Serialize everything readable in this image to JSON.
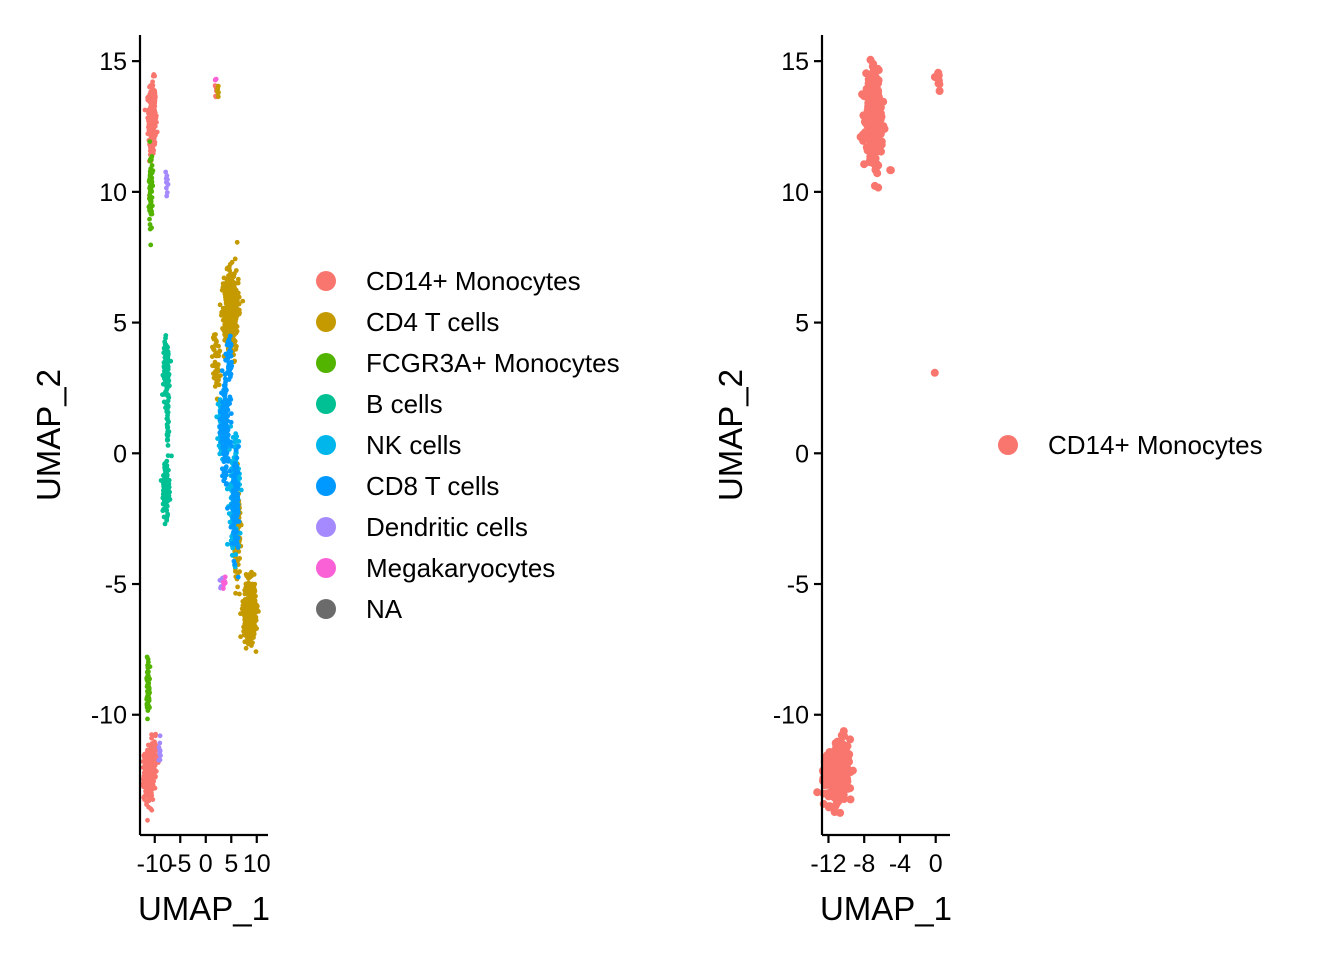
{
  "chart_data": [
    {
      "type": "scatter",
      "xlabel": "UMAP_1",
      "ylabel": "UMAP_2",
      "xticks": [
        -10,
        -5,
        0,
        5,
        10
      ],
      "xtick_labels": [
        "-10",
        "-5",
        "0",
        "5",
        "10"
      ],
      "yticks": [
        -10,
        -5,
        0,
        5,
        10,
        15
      ],
      "ytick_labels": [
        "-10",
        "-5",
        "0",
        "5",
        "10",
        "15"
      ],
      "xlim": [
        -12.5,
        12.2
      ],
      "ylim": [
        -14.6,
        16.0
      ],
      "legend": {
        "placement": "right",
        "entries": [
          {
            "label": "CD14+ Monocytes",
            "color": "#F8766D"
          },
          {
            "label": "CD4 T cells",
            "color": "#C49A00"
          },
          {
            "label": "FCGR3A+ Monocytes",
            "color": "#53B400"
          },
          {
            "label": "B cells",
            "color": "#00C094"
          },
          {
            "label": "NK cells",
            "color": "#00B6EB"
          },
          {
            "label": "CD8 T cells",
            "color": "#0099FF"
          },
          {
            "label": "Dendritic cells",
            "color": "#A58AFF"
          },
          {
            "label": "Megakaryocytes",
            "color": "#FB61D7"
          },
          {
            "label": "NA",
            "color": "#6B6B6B"
          }
        ]
      },
      "clusters": [
        {
          "series": "CD14+ Monocytes",
          "x": -10.5,
          "y": 12.8,
          "sx": 0.35,
          "sy": 0.7,
          "n": 340
        },
        {
          "series": "CD14+ Monocytes",
          "x": -11.2,
          "y": -12.3,
          "sx": 0.45,
          "sy": 0.45,
          "n": 420
        },
        {
          "series": "CD14+ Monocytes",
          "x": -10.2,
          "y": -11.6,
          "sx": 0.4,
          "sy": 0.35,
          "n": 60
        },
        {
          "series": "CD14+ Monocytes",
          "x": 2.0,
          "y": 13.8,
          "sx": 0.15,
          "sy": 0.15,
          "n": 6
        },
        {
          "series": "CD4 T cells",
          "x": 5.0,
          "y": 5.5,
          "sx": 0.7,
          "sy": 0.75,
          "n": 520
        },
        {
          "series": "CD4 T cells",
          "x": 8.6,
          "y": -6.0,
          "sx": 0.6,
          "sy": 0.55,
          "n": 380
        },
        {
          "series": "CD4 T cells",
          "x": 2.0,
          "y": 3.5,
          "sx": 0.35,
          "sy": 0.6,
          "n": 60
        },
        {
          "series": "CD4 T cells",
          "x": 6.2,
          "y": -3.0,
          "sx": 0.3,
          "sy": 0.9,
          "n": 120
        },
        {
          "series": "CD4 T cells",
          "x": 2.4,
          "y": 13.9,
          "sx": 0.1,
          "sy": 0.2,
          "n": 6
        },
        {
          "series": "FCGR3A+ Monocytes",
          "x": -10.8,
          "y": 10.0,
          "sx": 0.15,
          "sy": 0.7,
          "n": 80
        },
        {
          "series": "FCGR3A+ Monocytes",
          "x": -11.3,
          "y": -8.8,
          "sx": 0.15,
          "sy": 0.55,
          "n": 70
        },
        {
          "series": "B cells",
          "x": -7.7,
          "y": 3.2,
          "sx": 0.3,
          "sy": 0.55,
          "n": 140
        },
        {
          "series": "B cells",
          "x": -7.8,
          "y": -1.3,
          "sx": 0.3,
          "sy": 0.55,
          "n": 140
        },
        {
          "series": "B cells",
          "x": -7.5,
          "y": 0.9,
          "sx": 0.12,
          "sy": 0.6,
          "n": 30
        },
        {
          "series": "NK cells",
          "x": 5.6,
          "y": -1.6,
          "sx": 0.45,
          "sy": 1.1,
          "n": 200
        },
        {
          "series": "NK cells",
          "x": 3.1,
          "y": 1.0,
          "sx": 0.35,
          "sy": 0.5,
          "n": 60
        },
        {
          "series": "CD8 T cells",
          "x": 3.8,
          "y": 1.0,
          "sx": 0.5,
          "sy": 1.0,
          "n": 180
        },
        {
          "series": "CD8 T cells",
          "x": 5.8,
          "y": -2.0,
          "sx": 0.35,
          "sy": 0.8,
          "n": 120
        },
        {
          "series": "CD8 T cells",
          "x": 4.6,
          "y": 3.5,
          "sx": 0.3,
          "sy": 0.4,
          "n": 40
        },
        {
          "series": "Dendritic cells",
          "x": -7.6,
          "y": 10.3,
          "sx": 0.15,
          "sy": 0.25,
          "n": 12
        },
        {
          "series": "Dendritic cells",
          "x": -9.0,
          "y": -11.4,
          "sx": 0.15,
          "sy": 0.2,
          "n": 10
        },
        {
          "series": "Dendritic cells",
          "x": 3.3,
          "y": -5.0,
          "sx": 0.2,
          "sy": 0.15,
          "n": 10
        },
        {
          "series": "Megakaryocytes",
          "x": 3.6,
          "y": -4.9,
          "sx": 0.15,
          "sy": 0.12,
          "n": 6
        },
        {
          "series": "Megakaryocytes",
          "x": 1.9,
          "y": 14.3,
          "sx": 0.08,
          "sy": 0.08,
          "n": 3
        }
      ]
    },
    {
      "type": "scatter",
      "xlabel": "UMAP_1",
      "ylabel": "UMAP_2",
      "xticks": [
        -12,
        -8,
        -4,
        0
      ],
      "xtick_labels": [
        "-12",
        "-8",
        "-4",
        "0"
      ],
      "yticks": [
        -10,
        -5,
        0,
        5,
        10,
        15
      ],
      "ytick_labels": [
        "-10",
        "-5",
        "0",
        "5",
        "10",
        "15"
      ],
      "xlim": [
        -12.5,
        1.6
      ],
      "ylim": [
        -14.6,
        16.0
      ],
      "legend": {
        "placement": "right",
        "entries": [
          {
            "label": "CD14+ Monocytes",
            "color": "#F8766D"
          }
        ]
      },
      "clusters": [
        {
          "series": "CD14+ Monocytes",
          "x": -6.9,
          "y": 12.8,
          "sx": 0.45,
          "sy": 0.75,
          "n": 320
        },
        {
          "series": "CD14+ Monocytes",
          "x": -11.1,
          "y": -12.3,
          "sx": 0.6,
          "sy": 0.45,
          "n": 420
        },
        {
          "series": "CD14+ Monocytes",
          "x": -10.3,
          "y": -11.5,
          "sx": 0.4,
          "sy": 0.4,
          "n": 50
        },
        {
          "series": "CD14+ Monocytes",
          "x": 0.3,
          "y": 14.2,
          "sx": 0.2,
          "sy": 0.25,
          "n": 8
        },
        {
          "series": "CD14+ Monocytes",
          "x": -0.1,
          "y": 3.1,
          "sx": 0.02,
          "sy": 0.02,
          "n": 1
        },
        {
          "series": "CD14+ Monocytes",
          "x": -5.1,
          "y": 10.8,
          "sx": 0.05,
          "sy": 0.05,
          "n": 2
        }
      ]
    }
  ]
}
